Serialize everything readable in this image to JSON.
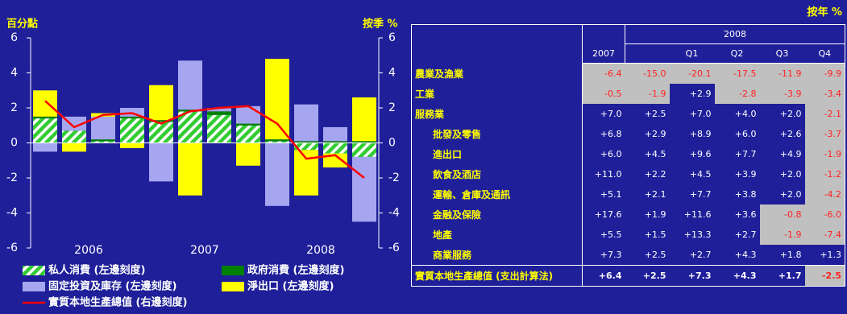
{
  "chart_data": {
    "type": "bar",
    "ylabel": "百分點",
    "y2label": "按季 %",
    "categories": [
      null,
      null,
      null,
      null,
      null,
      null,
      null,
      null,
      null,
      null,
      null,
      null
    ],
    "x_groups": [
      "2006",
      "2007",
      "2008"
    ],
    "ylim": [
      -6,
      6
    ],
    "yticks": [
      6,
      4,
      2,
      0,
      -2,
      -4,
      -6
    ],
    "y2lim": [
      -6,
      6
    ],
    "y2ticks": [
      6,
      4,
      2,
      0,
      -2,
      -4,
      -6
    ],
    "series": [
      {
        "name": "私人消費 (左邊刻度)",
        "color": "#33cc33",
        "pattern": "hatch",
        "values": [
          1.4,
          0.7,
          0.1,
          1.4,
          1.2,
          1.8,
          1.6,
          1.0,
          0.1,
          -0.4,
          -0.6,
          -0.8
        ]
      },
      {
        "name": "政府消費 (左邊刻度)",
        "color": "#008000",
        "values": [
          0.1,
          0.0,
          0.1,
          0.1,
          0.1,
          0.1,
          0.2,
          0.1,
          0.1,
          0.1,
          0.1,
          0.1
        ]
      },
      {
        "name": "固定投資及庫存 (左邊刻度)",
        "color": "#a6a6f0",
        "values": [
          -0.5,
          0.8,
          1.3,
          0.5,
          -2.2,
          2.8,
          0.2,
          1.0,
          -3.6,
          2.1,
          0.8,
          -3.7
        ]
      },
      {
        "name": "淨出口 (左邊刻度)",
        "color": "#ffff00",
        "values": [
          1.5,
          -0.5,
          0.2,
          -0.3,
          2.0,
          -3.0,
          0.0,
          -1.3,
          4.6,
          -2.6,
          -0.8,
          2.5
        ]
      },
      {
        "name": "實質本地生產總值 (右邊刻度)",
        "color": "#ff0000",
        "type": "line",
        "axis": "y2",
        "values": [
          2.4,
          0.9,
          1.6,
          1.7,
          1.1,
          1.8,
          2.0,
          2.1,
          1.1,
          -0.9,
          -0.7,
          -2.0
        ]
      }
    ]
  },
  "table": {
    "unit": "按年 %",
    "group_header": "2008",
    "columns": [
      "2007",
      null,
      "Q1",
      "Q2",
      "Q3",
      "Q4"
    ],
    "rows": [
      {
        "label": "農業及漁業",
        "cells": [
          "-6.4",
          "-15.0",
          "-20.1",
          "-17.5",
          "-11.9",
          "-9.9"
        ]
      },
      {
        "label": "工業",
        "cells": [
          "-0.5",
          "-1.9",
          "+2.9",
          "-2.8",
          "-3.9",
          "-3.4"
        ]
      },
      {
        "label": "服務業",
        "cells": [
          "+7.0",
          "+2.5",
          "+7.0",
          "+4.0",
          "+2.0",
          "-2.1"
        ]
      },
      {
        "label": "批發及零售",
        "cells": [
          "+6.8",
          "+2.9",
          "+8.9",
          "+6.0",
          "+2.6",
          "-3.7"
        ]
      },
      {
        "label": "進出口",
        "cells": [
          "+6.0",
          "+4.5",
          "+9.6",
          "+7.7",
          "+4.9",
          "-1.9"
        ]
      },
      {
        "label": "飲食及酒店",
        "cells": [
          "+11.0",
          "+2.2",
          "+4.5",
          "+3.9",
          "+2.0",
          "-1.2"
        ]
      },
      {
        "label": "運輸、倉庫及通訊",
        "cells": [
          "+5.1",
          "+2.1",
          "+7.7",
          "+3.8",
          "+2.0",
          "-4.2"
        ]
      },
      {
        "label": "金融及保險",
        "cells": [
          "+17.6",
          "+1.9",
          "+11.6",
          "+3.6",
          "-0.8",
          "-6.0"
        ]
      },
      {
        "label": "地產",
        "cells": [
          "+5.5",
          "+1.5",
          "+13.3",
          "+2.7",
          "-1.9",
          "-7.4"
        ]
      },
      {
        "label": "商業服務",
        "cells": [
          "+7.3",
          "+2.5",
          "+2.7",
          "+4.3",
          "+1.8",
          "+1.3"
        ]
      },
      {
        "label": "實質本地生產總值 (支出計算法)",
        "cells": [
          "+6.4",
          "+2.5",
          "+7.3",
          "+4.3",
          "+1.7",
          "-2.5"
        ]
      }
    ]
  }
}
